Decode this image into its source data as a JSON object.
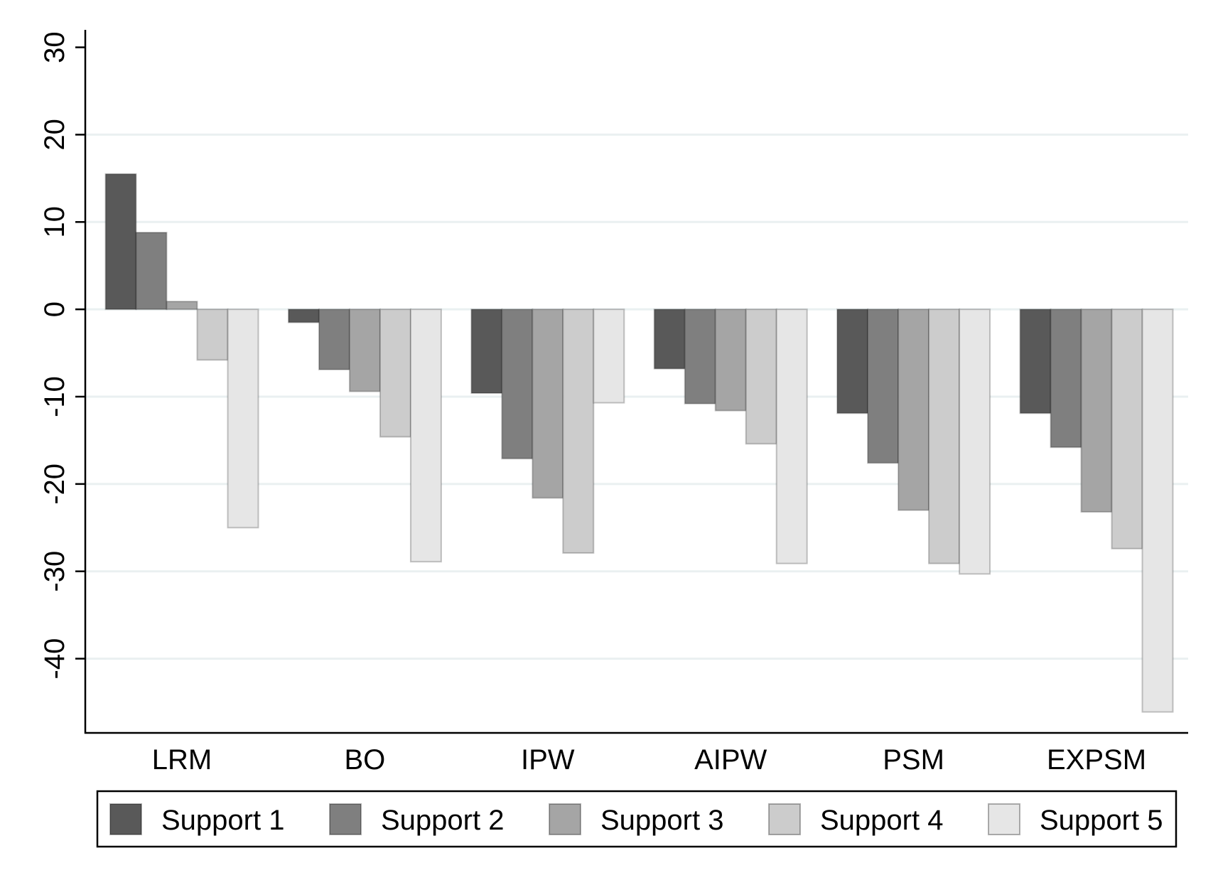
{
  "chart_data": {
    "type": "bar",
    "title": "",
    "xlabel": "",
    "ylabel": "",
    "categories": [
      "LRM",
      "BO",
      "IPW",
      "AIPW",
      "PSM",
      "EXPSM"
    ],
    "series": [
      {
        "name": "Support 1",
        "color": "#595959",
        "values": [
          15.5,
          -1.5,
          -9.6,
          -6.8,
          -11.9,
          -11.9
        ]
      },
      {
        "name": "Support 2",
        "color": "#7f7f7f",
        "values": [
          8.8,
          -6.9,
          -17.1,
          -10.8,
          -17.6,
          -15.8
        ]
      },
      {
        "name": "Support 3",
        "color": "#a5a5a5",
        "values": [
          0.9,
          -9.4,
          -21.6,
          -11.6,
          -23.0,
          -23.2
        ]
      },
      {
        "name": "Support 4",
        "color": "#cccccc",
        "values": [
          -5.8,
          -14.6,
          -27.9,
          -15.4,
          -29.1,
          -27.4
        ]
      },
      {
        "name": "Support 5",
        "color": "#e6e6e6",
        "values": [
          -25.0,
          -28.9,
          -10.7,
          -29.1,
          -30.3,
          -46.1
        ]
      }
    ],
    "ylim": [
      -48.5,
      32
    ],
    "yticks": [
      30,
      20,
      10,
      0,
      -10,
      -20,
      -30,
      -40
    ],
    "ytick_labels": [
      "30",
      "20",
      "10",
      "0",
      "-10",
      "-20",
      "-30",
      "-40"
    ],
    "grid": true,
    "legend": {
      "position": "bottom",
      "columns": 5
    }
  }
}
